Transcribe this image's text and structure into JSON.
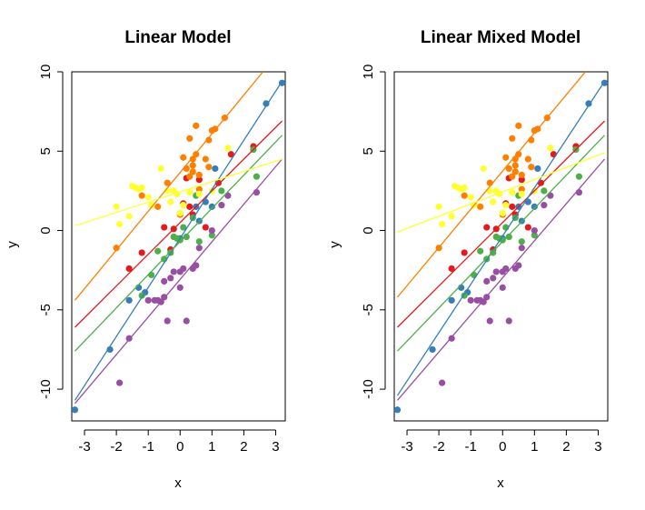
{
  "colors": {
    "red": "#E41A1C",
    "blue": "#377EB8",
    "green": "#4DAF4A",
    "purple": "#984EA3",
    "orange": "#FF7F00",
    "yellow": "#FFFF33"
  },
  "chart_data": [
    {
      "type": "scatter",
      "title": "Linear Model",
      "xlabel": "x",
      "ylabel": "y",
      "xlim": [
        -3.4,
        3.3
      ],
      "ylim": [
        -12,
        10
      ],
      "xticks": [
        "-3",
        "-2",
        "-1",
        "0",
        "1",
        "2",
        "3"
      ],
      "yticks": [
        "-10",
        "-5",
        "0",
        "5",
        "10"
      ],
      "series": [
        {
          "name": "group-red",
          "color": "red",
          "line": {
            "x1": -3.3,
            "y1": -6.1,
            "x2": 3.2,
            "y2": 6.9
          },
          "points": [
            [
              -1.6,
              -2.4
            ],
            [
              -1.2,
              -1.4
            ],
            [
              -0.5,
              0.2
            ],
            [
              -0.3,
              -1.2
            ],
            [
              -0.2,
              0.1
            ],
            [
              0.1,
              1.7
            ],
            [
              0.2,
              3.3
            ],
            [
              0.3,
              1.5
            ],
            [
              0.6,
              3.2
            ],
            [
              0.8,
              0.2
            ],
            [
              1.2,
              3.0
            ],
            [
              1.6,
              4.8
            ],
            [
              2.3,
              5.3
            ],
            [
              0.4,
              1.0
            ]
          ]
        },
        {
          "name": "group-blue",
          "color": "blue",
          "line": {
            "x1": -3.3,
            "y1": -10.7,
            "x2": 3.2,
            "y2": 9.4
          },
          "points": [
            [
              -3.3,
              -11.3
            ],
            [
              -2.2,
              -7.5
            ],
            [
              -1.6,
              -4.4
            ],
            [
              -1.3,
              -3.6
            ],
            [
              -1.1,
              -3.9
            ],
            [
              0.0,
              -0.5
            ],
            [
              0.5,
              1.5
            ],
            [
              0.6,
              0.6
            ],
            [
              0.8,
              1.8
            ],
            [
              1.0,
              1.5
            ],
            [
              1.1,
              3.9
            ],
            [
              2.7,
              8.0
            ],
            [
              3.2,
              9.3
            ]
          ]
        },
        {
          "name": "group-green",
          "color": "green",
          "line": {
            "x1": -3.3,
            "y1": -7.6,
            "x2": 3.2,
            "y2": 6.0
          },
          "points": [
            [
              -1.2,
              -4.1
            ],
            [
              -0.9,
              -2.8
            ],
            [
              -0.7,
              -1.3
            ],
            [
              -0.5,
              -1.8
            ],
            [
              -0.3,
              -1.4
            ],
            [
              -0.2,
              -0.4
            ],
            [
              0.0,
              -0.6
            ],
            [
              0.2,
              -0.4
            ],
            [
              0.4,
              0.8
            ],
            [
              0.5,
              2.2
            ],
            [
              0.6,
              -0.7
            ],
            [
              1.0,
              -0.3
            ],
            [
              1.3,
              2.5
            ],
            [
              2.3,
              5.1
            ],
            [
              2.4,
              3.4
            ],
            [
              -0.1,
              -0.5
            ],
            [
              0.1,
              0.2
            ]
          ]
        },
        {
          "name": "group-purple",
          "color": "purple",
          "line": {
            "x1": -3.3,
            "y1": -10.9,
            "x2": 3.2,
            "y2": 4.5
          },
          "points": [
            [
              -1.9,
              -9.6
            ],
            [
              -1.6,
              -6.8
            ],
            [
              -1.0,
              -4.4
            ],
            [
              -0.8,
              -4.4
            ],
            [
              -0.7,
              -4.4
            ],
            [
              -0.6,
              -4.5
            ],
            [
              -0.5,
              -4.2
            ],
            [
              -0.5,
              -3.2
            ],
            [
              -0.4,
              -5.7
            ],
            [
              -0.3,
              -3.0
            ],
            [
              -0.2,
              -2.6
            ],
            [
              0.0,
              -3.6
            ],
            [
              0.0,
              -2.6
            ],
            [
              0.1,
              -2.4
            ],
            [
              0.2,
              -5.7
            ],
            [
              0.4,
              -2.4
            ],
            [
              0.5,
              -2.2
            ],
            [
              0.6,
              -1.1
            ],
            [
              1.0,
              0.0
            ],
            [
              1.3,
              1.6
            ],
            [
              1.5,
              2.2
            ],
            [
              2.4,
              2.4
            ]
          ]
        },
        {
          "name": "group-orange",
          "color": "orange",
          "line": {
            "x1": -3.3,
            "y1": -4.4,
            "x2": 2.6,
            "y2": 10.0
          },
          "points": [
            [
              -2.0,
              -1.1
            ],
            [
              -1.2,
              2.2
            ],
            [
              -0.7,
              1.5
            ],
            [
              -0.4,
              3.0
            ],
            [
              0.0,
              1.0
            ],
            [
              0.1,
              4.6
            ],
            [
              0.2,
              3.9
            ],
            [
              0.3,
              5.8
            ],
            [
              0.3,
              3.4
            ],
            [
              0.4,
              4.5
            ],
            [
              0.4,
              3.7
            ],
            [
              0.4,
              4.1
            ],
            [
              0.5,
              6.6
            ],
            [
              0.6,
              3.5
            ],
            [
              0.6,
              2.6
            ],
            [
              0.8,
              4.5
            ],
            [
              0.9,
              4.0
            ],
            [
              0.9,
              5.7
            ],
            [
              1.0,
              6.3
            ],
            [
              1.1,
              6.4
            ],
            [
              1.4,
              7.1
            ],
            [
              0.5,
              4.8
            ]
          ]
        },
        {
          "name": "group-yellow",
          "color": "yellow",
          "line": {
            "x1": -3.3,
            "y1": 0.3,
            "x2": 3.2,
            "y2": 4.5
          },
          "points": [
            [
              -2.0,
              1.5
            ],
            [
              -1.9,
              0.4
            ],
            [
              -1.5,
              2.8
            ],
            [
              -1.4,
              2.7
            ],
            [
              -1.3,
              2.6
            ],
            [
              -1.2,
              2.7
            ],
            [
              -1.0,
              2.1
            ],
            [
              -0.9,
              1.6
            ],
            [
              -0.6,
              3.9
            ],
            [
              -0.4,
              2.5
            ],
            [
              -0.3,
              1.8
            ],
            [
              -0.2,
              2.5
            ],
            [
              -0.1,
              2.3
            ],
            [
              0.0,
              1.1
            ],
            [
              0.1,
              1.6
            ],
            [
              0.3,
              2.4
            ],
            [
              0.6,
              2.3
            ],
            [
              1.0,
              2.5
            ],
            [
              1.5,
              5.2
            ],
            [
              -1.6,
              0.9
            ]
          ]
        }
      ]
    },
    {
      "type": "scatter",
      "title": "Linear Mixed Model",
      "xlabel": "x",
      "ylabel": "y",
      "xlim": [
        -3.4,
        3.3
      ],
      "ylim": [
        -12,
        10
      ],
      "xticks": [
        "-3",
        "-2",
        "-1",
        "0",
        "1",
        "2",
        "3"
      ],
      "yticks": [
        "-10",
        "-5",
        "0",
        "5",
        "10"
      ],
      "series": [
        {
          "name": "group-red",
          "color": "red",
          "line": {
            "x1": -3.3,
            "y1": -6.1,
            "x2": 3.2,
            "y2": 6.9
          },
          "points": [
            [
              -1.6,
              -2.4
            ],
            [
              -1.2,
              -1.4
            ],
            [
              -0.5,
              0.2
            ],
            [
              -0.3,
              -1.2
            ],
            [
              -0.2,
              0.1
            ],
            [
              0.1,
              1.7
            ],
            [
              0.2,
              3.3
            ],
            [
              0.3,
              1.5
            ],
            [
              0.6,
              3.2
            ],
            [
              0.8,
              0.2
            ],
            [
              1.2,
              3.0
            ],
            [
              1.6,
              4.8
            ],
            [
              2.3,
              5.3
            ],
            [
              0.4,
              1.0
            ]
          ]
        },
        {
          "name": "group-blue",
          "color": "blue",
          "line": {
            "x1": -3.3,
            "y1": -10.4,
            "x2": 3.2,
            "y2": 9.4
          },
          "points": [
            [
              -3.3,
              -11.3
            ],
            [
              -2.2,
              -7.5
            ],
            [
              -1.6,
              -4.4
            ],
            [
              -1.3,
              -3.6
            ],
            [
              -1.1,
              -3.9
            ],
            [
              0.0,
              -0.5
            ],
            [
              0.5,
              1.5
            ],
            [
              0.6,
              0.6
            ],
            [
              0.8,
              1.8
            ],
            [
              1.0,
              1.5
            ],
            [
              1.1,
              3.9
            ],
            [
              2.7,
              8.0
            ],
            [
              3.2,
              9.3
            ]
          ]
        },
        {
          "name": "group-green",
          "color": "green",
          "line": {
            "x1": -3.3,
            "y1": -7.6,
            "x2": 3.2,
            "y2": 6.0
          },
          "points": [
            [
              -1.2,
              -4.1
            ],
            [
              -0.9,
              -2.8
            ],
            [
              -0.7,
              -1.3
            ],
            [
              -0.5,
              -1.8
            ],
            [
              -0.3,
              -1.4
            ],
            [
              -0.2,
              -0.4
            ],
            [
              0.0,
              -0.6
            ],
            [
              0.2,
              -0.4
            ],
            [
              0.4,
              0.8
            ],
            [
              0.5,
              2.2
            ],
            [
              0.6,
              -0.7
            ],
            [
              1.0,
              -0.3
            ],
            [
              1.3,
              2.5
            ],
            [
              2.3,
              5.1
            ],
            [
              2.4,
              3.4
            ],
            [
              -0.1,
              -0.5
            ],
            [
              0.1,
              0.2
            ]
          ]
        },
        {
          "name": "group-purple",
          "color": "purple",
          "line": {
            "x1": -3.3,
            "y1": -10.7,
            "x2": 3.2,
            "y2": 4.5
          },
          "points": [
            [
              -1.9,
              -9.6
            ],
            [
              -1.6,
              -6.8
            ],
            [
              -1.0,
              -4.4
            ],
            [
              -0.8,
              -4.4
            ],
            [
              -0.7,
              -4.4
            ],
            [
              -0.6,
              -4.5
            ],
            [
              -0.5,
              -4.2
            ],
            [
              -0.5,
              -3.2
            ],
            [
              -0.4,
              -5.7
            ],
            [
              -0.3,
              -3.0
            ],
            [
              -0.2,
              -2.6
            ],
            [
              0.0,
              -3.6
            ],
            [
              0.0,
              -2.6
            ],
            [
              0.1,
              -2.4
            ],
            [
              0.2,
              -5.7
            ],
            [
              0.4,
              -2.4
            ],
            [
              0.5,
              -2.2
            ],
            [
              0.6,
              -1.1
            ],
            [
              1.0,
              0.0
            ],
            [
              1.3,
              1.6
            ],
            [
              1.5,
              2.2
            ],
            [
              2.4,
              2.4
            ]
          ]
        },
        {
          "name": "group-orange",
          "color": "orange",
          "line": {
            "x1": -3.3,
            "y1": -4.2,
            "x2": 2.6,
            "y2": 10.0
          },
          "points": [
            [
              -2.0,
              -1.1
            ],
            [
              -1.2,
              2.2
            ],
            [
              -0.7,
              1.5
            ],
            [
              -0.4,
              3.0
            ],
            [
              0.0,
              1.0
            ],
            [
              0.1,
              4.6
            ],
            [
              0.2,
              3.9
            ],
            [
              0.3,
              5.8
            ],
            [
              0.3,
              3.4
            ],
            [
              0.4,
              4.5
            ],
            [
              0.4,
              3.7
            ],
            [
              0.4,
              4.1
            ],
            [
              0.5,
              6.6
            ],
            [
              0.6,
              3.5
            ],
            [
              0.6,
              2.6
            ],
            [
              0.8,
              4.5
            ],
            [
              0.9,
              4.0
            ],
            [
              0.9,
              5.7
            ],
            [
              1.0,
              6.3
            ],
            [
              1.1,
              6.4
            ],
            [
              1.4,
              7.1
            ],
            [
              0.5,
              4.8
            ]
          ]
        },
        {
          "name": "group-yellow",
          "color": "yellow",
          "line": {
            "x1": -3.3,
            "y1": -0.1,
            "x2": 3.2,
            "y2": 4.9
          },
          "points": [
            [
              -2.0,
              1.5
            ],
            [
              -1.9,
              0.4
            ],
            [
              -1.5,
              2.8
            ],
            [
              -1.4,
              2.7
            ],
            [
              -1.3,
              2.6
            ],
            [
              -1.2,
              2.7
            ],
            [
              -1.0,
              2.1
            ],
            [
              -0.9,
              1.6
            ],
            [
              -0.6,
              3.9
            ],
            [
              -0.4,
              2.5
            ],
            [
              -0.3,
              1.8
            ],
            [
              -0.2,
              2.5
            ],
            [
              -0.1,
              2.3
            ],
            [
              0.0,
              1.1
            ],
            [
              0.1,
              1.6
            ],
            [
              0.3,
              2.4
            ],
            [
              0.6,
              2.3
            ],
            [
              1.0,
              2.5
            ],
            [
              1.5,
              5.2
            ],
            [
              -1.6,
              0.9
            ]
          ]
        }
      ]
    }
  ]
}
